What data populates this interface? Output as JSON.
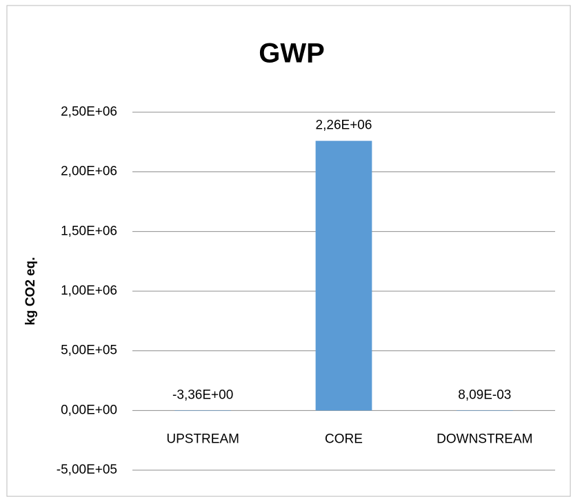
{
  "chart_data": {
    "type": "bar",
    "title": "GWP",
    "y_label": "kg CO2 eq.",
    "categories": [
      "UPSTREAM",
      "CORE",
      "DOWNSTREAM"
    ],
    "values": [
      -3.36,
      2260000,
      0.00809
    ],
    "value_labels": [
      "-3,36E+00",
      "2,26E+06",
      "8,09E-03"
    ],
    "color": "#5b9bd5",
    "ylim": [
      -500000,
      2500000
    ],
    "yticks": [
      {
        "value": -500000,
        "label": "-5,00E+05"
      },
      {
        "value": 0,
        "label": "0,00E+00"
      },
      {
        "value": 500000,
        "label": "5,00E+05"
      },
      {
        "value": 1000000,
        "label": "1,00E+06"
      },
      {
        "value": 1500000,
        "label": "1,50E+06"
      },
      {
        "value": 2000000,
        "label": "2,00E+06"
      },
      {
        "value": 2500000,
        "label": "2,50E+06"
      }
    ],
    "grid": true
  }
}
